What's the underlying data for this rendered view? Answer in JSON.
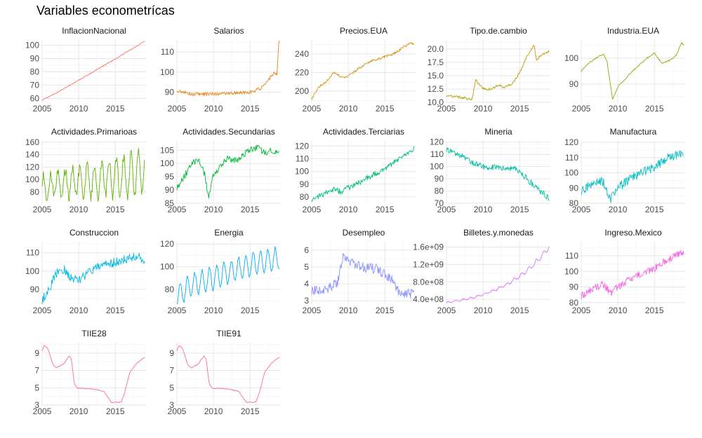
{
  "figure": {
    "title": "Variables econometrícas"
  },
  "chart_data": [
    {
      "type": "line",
      "title": "InflacionNacional",
      "color": "#F8766D",
      "x_ticks": [
        2005,
        2010,
        2015
      ],
      "y_ticks": [
        60,
        70,
        80,
        90,
        100
      ],
      "ylim": [
        57,
        104
      ],
      "xlim": [
        2005,
        2019.2
      ],
      "shape": "trend",
      "start": 58.5,
      "end": 103,
      "noise": 0.4
    },
    {
      "type": "line",
      "title": "Salarios",
      "color": "#E7861B",
      "x_ticks": [
        2005,
        2010,
        2015
      ],
      "y_ticks": [
        90,
        100,
        110
      ],
      "ylim": [
        85,
        116
      ],
      "xlim": [
        2005,
        2019.2
      ],
      "shape": "salarios",
      "noise": 0.9
    },
    {
      "type": "line",
      "title": "Precios.EUA",
      "color": "#D39200",
      "x_ticks": [
        2005,
        2010,
        2015
      ],
      "y_ticks": [
        200,
        220,
        240
      ],
      "ylim": [
        188,
        255
      ],
      "xlim": [
        2005,
        2019.2
      ],
      "shape": "precios",
      "noise": 1.3
    },
    {
      "type": "line",
      "title": "Tipo.de.cambio",
      "color": "#B79F00",
      "x_ticks": [
        2005,
        2010,
        2015
      ],
      "y_ticks": [
        10.0,
        12.5,
        15.0,
        17.5,
        20.0
      ],
      "tick_labels": [
        "10.0",
        "12.5",
        "15.0",
        "17.5",
        "20.0"
      ],
      "ylim": [
        10,
        21.7
      ],
      "xlim": [
        2005,
        2019.2
      ],
      "shape": "tipo",
      "noise": 0.25
    },
    {
      "type": "line",
      "title": "Industria.EUA",
      "color": "#93AA00",
      "x_ticks": [
        2005,
        2010,
        2015
      ],
      "y_ticks": [
        90,
        100
      ],
      "ylim": [
        83,
        107
      ],
      "xlim": [
        2005,
        2019.2
      ],
      "shape": "industria",
      "noise": 0.3
    },
    {
      "type": "line",
      "title": "Actividades.Primarioas",
      "color": "#5EB300",
      "x_ticks": [
        2005,
        2010,
        2015
      ],
      "y_ticks": [
        60,
        80,
        100,
        120,
        140,
        160
      ],
      "ylim": [
        62,
        162
      ],
      "xlim": [
        2005,
        2019.2
      ],
      "shape": "primarias",
      "noise": 3
    },
    {
      "type": "line",
      "title": "Actividades.Secundarias",
      "color": "#00BA38",
      "x_ticks": [
        2005,
        2010,
        2015
      ],
      "y_ticks": [
        85,
        90,
        95,
        100,
        105
      ],
      "ylim": [
        85,
        108.5
      ],
      "xlim": [
        2005,
        2019.2
      ],
      "shape": "secundarias",
      "noise": 1.2
    },
    {
      "type": "line",
      "title": "Actividades.Terciarias",
      "color": "#00BF74",
      "x_ticks": [
        2005,
        2010,
        2015
      ],
      "y_ticks": [
        80,
        90,
        100,
        110,
        120
      ],
      "ylim": [
        75,
        124
      ],
      "xlim": [
        2005,
        2019.2
      ],
      "shape": "terciarias",
      "noise": 2.2
    },
    {
      "type": "line",
      "title": "Mineria",
      "color": "#00C19F",
      "x_ticks": [
        2005,
        2010,
        2015
      ],
      "y_ticks": [
        70,
        80,
        90,
        100,
        110,
        120
      ],
      "ylim": [
        70,
        121
      ],
      "xlim": [
        2005,
        2019.2
      ],
      "shape": "mineria",
      "noise": 2.5
    },
    {
      "type": "line",
      "title": "Manufactura",
      "color": "#00BFC4",
      "x_ticks": [
        2005,
        2010,
        2015
      ],
      "y_ticks": [
        80,
        90,
        100,
        110,
        120
      ],
      "ylim": [
        80,
        121
      ],
      "xlim": [
        2005,
        2019.2
      ],
      "shape": "manufactura",
      "noise": 3
    },
    {
      "type": "line",
      "title": "Construccion",
      "color": "#00B9E3",
      "x_ticks": [
        2005,
        2010,
        2015
      ],
      "y_ticks": [
        90,
        100,
        110
      ],
      "ylim": [
        82,
        116
      ],
      "xlim": [
        2005,
        2019.2
      ],
      "shape": "construccion",
      "noise": 2.5
    },
    {
      "type": "line",
      "title": "Energia",
      "color": "#00ADFA",
      "x_ticks": [
        2005,
        2010,
        2015
      ],
      "y_ticks": [
        80,
        100,
        120
      ],
      "ylim": [
        67,
        122
      ],
      "xlim": [
        2005,
        2019.2
      ],
      "shape": "energia",
      "noise": 1.5
    },
    {
      "type": "line",
      "title": "Desempleo",
      "color": "#8B93FF",
      "x_ticks": [
        2005,
        2010,
        2015
      ],
      "y_ticks": [
        3,
        4,
        5,
        6
      ],
      "ylim": [
        2.8,
        6.5
      ],
      "xlim": [
        2005,
        2019.2
      ],
      "shape": "desempleo",
      "noise": 0.3
    },
    {
      "type": "line",
      "title": "Billetes.y.monedas",
      "color": "#DB72FB",
      "x_ticks": [
        2005,
        2010,
        2015
      ],
      "y_ticks": [
        400000000,
        800000000,
        1200000000,
        1600000000
      ],
      "tick_labels": [
        "4.0e+08",
        "8.0e+08",
        "1.2e+09",
        "1.6e+09"
      ],
      "ylim": [
        290000000,
        1720000000
      ],
      "xlim": [
        2005,
        2019.2
      ],
      "shape": "billetes",
      "noise": 15000000
    },
    {
      "type": "line",
      "title": "Ingreso.Mexico",
      "color": "#F564E3",
      "x_ticks": [
        2005,
        2010,
        2015
      ],
      "y_ticks": [
        80,
        90,
        100,
        110
      ],
      "ylim": [
        79,
        119
      ],
      "xlim": [
        2005,
        2019.2
      ],
      "shape": "ingreso",
      "noise": 2.5
    },
    {
      "type": "line",
      "title": "TIIE28",
      "color": "#FF64B0",
      "x_ticks": [
        2005,
        2010,
        2015
      ],
      "y_ticks": [
        3,
        5,
        7,
        9
      ],
      "ylim": [
        3,
        10.2
      ],
      "xlim": [
        2005,
        2019.2
      ],
      "shape": "tiie",
      "noise": 0.05
    },
    {
      "type": "line",
      "title": "TIIE91",
      "color": "#FF6C91",
      "x_ticks": [
        2005,
        2010,
        2015
      ],
      "y_ticks": [
        3,
        5,
        7,
        9
      ],
      "ylim": [
        3,
        10.2
      ],
      "xlim": [
        2005,
        2019.2
      ],
      "shape": "tiie",
      "noise": 0.05
    }
  ]
}
